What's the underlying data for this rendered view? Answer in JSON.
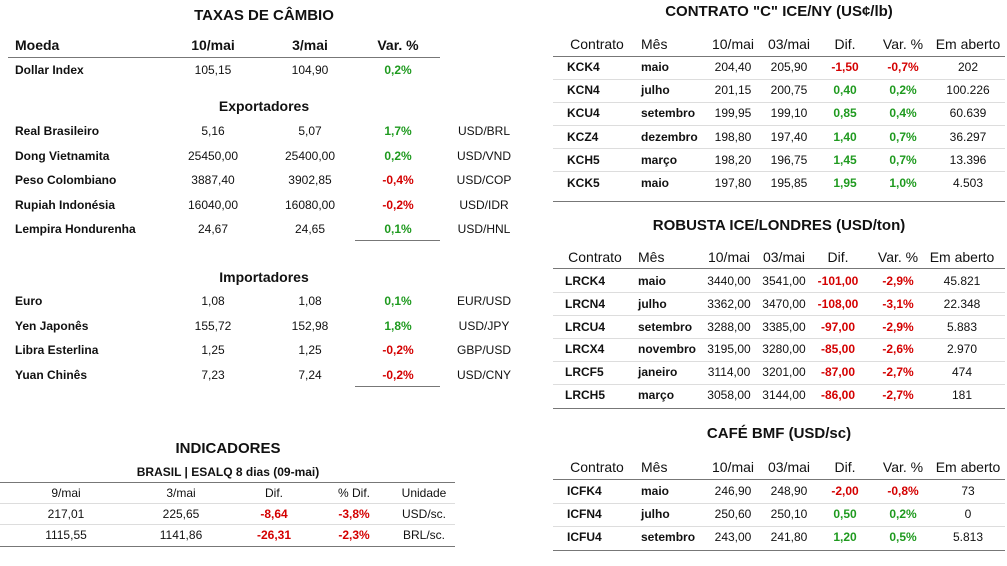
{
  "exchange": {
    "title": "TAXAS DE CÂMBIO",
    "header": [
      "Moeda",
      "10/mai",
      "3/mai",
      "Var. %"
    ],
    "dollar_index": [
      "Dollar Index",
      "105,15",
      "104,90",
      "0,2%"
    ],
    "exporters": {
      "title": "Exportadores",
      "rows": [
        [
          "Real Brasileiro",
          "5,16",
          "5,07",
          "1,7%",
          "USD/BRL"
        ],
        [
          "Dong Vietnamita",
          "25450,00",
          "25400,00",
          "0,2%",
          "USD/VND"
        ],
        [
          "Peso Colombiano",
          "3887,40",
          "3902,85",
          "-0,4%",
          "USD/COP"
        ],
        [
          "Rupiah Indonésia",
          "16040,00",
          "16080,00",
          "-0,2%",
          "USD/IDR"
        ],
        [
          "Lempira Hondurenha",
          "24,67",
          "24,65",
          "0,1%",
          "USD/HNL"
        ]
      ]
    },
    "importers": {
      "title": "Importadores",
      "rows": [
        [
          "Euro",
          "1,08",
          "1,08",
          "0,1%",
          "EUR/USD"
        ],
        [
          "Yen Japonês",
          "155,72",
          "152,98",
          "1,8%",
          "USD/JPY"
        ],
        [
          "Libra Esterlina",
          "1,25",
          "1,25",
          "-0,2%",
          "GBP/USD"
        ],
        [
          "Yuan Chinês",
          "7,23",
          "7,24",
          "-0,2%",
          "USD/CNY"
        ]
      ]
    }
  },
  "indicators": {
    "title": "INDICADORES",
    "subtitle": "BRASIL | ESALQ 8 dias (09-mai)",
    "header": [
      "9/mai",
      "3/mai",
      "Dif.",
      "% Dif.",
      "Unidade"
    ],
    "rows": [
      [
        "217,01",
        "225,65",
        "-8,64",
        "-3,8%",
        "USD/sc."
      ],
      [
        "1115,55",
        "1141,86",
        "-26,31",
        "-2,3%",
        "BRL/sc."
      ]
    ]
  },
  "ice_ny": {
    "title": "CONTRATO \"C\" ICE/NY (US¢/lb)",
    "header": [
      "Contrato",
      "Mês",
      "10/mai",
      "03/mai",
      "Dif.",
      "Var. %",
      "Em aberto"
    ],
    "rows": [
      [
        "KCK4",
        "maio",
        "204,40",
        "205,90",
        "-1,50",
        "-0,7%",
        "202"
      ],
      [
        "KCN4",
        "julho",
        "201,15",
        "200,75",
        "0,40",
        "0,2%",
        "100.226"
      ],
      [
        "KCU4",
        "setembro",
        "199,95",
        "199,10",
        "0,85",
        "0,4%",
        "60.639"
      ],
      [
        "KCZ4",
        "dezembro",
        "198,80",
        "197,40",
        "1,40",
        "0,7%",
        "36.297"
      ],
      [
        "KCH5",
        "março",
        "198,20",
        "196,75",
        "1,45",
        "0,7%",
        "13.396"
      ],
      [
        "KCK5",
        "maio",
        "197,80",
        "195,85",
        "1,95",
        "1,0%",
        "4.503"
      ]
    ]
  },
  "robusta": {
    "title": "ROBUSTA ICE/LONDRES (USD/ton)",
    "header": [
      "Contrato",
      "Mês",
      "10/mai",
      "03/mai",
      "Dif.",
      "Var. %",
      "Em aberto"
    ],
    "rows": [
      [
        "LRCK4",
        "maio",
        "3440,00",
        "3541,00",
        "-101,00",
        "-2,9%",
        "45.821"
      ],
      [
        "LRCN4",
        "julho",
        "3362,00",
        "3470,00",
        "-108,00",
        "-3,1%",
        "22.348"
      ],
      [
        "LRCU4",
        "setembro",
        "3288,00",
        "3385,00",
        "-97,00",
        "-2,9%",
        "5.883"
      ],
      [
        "LRCX4",
        "novembro",
        "3195,00",
        "3280,00",
        "-85,00",
        "-2,6%",
        "2.970"
      ],
      [
        "LRCF5",
        "janeiro",
        "3114,00",
        "3201,00",
        "-87,00",
        "-2,7%",
        "474"
      ],
      [
        "LRCH5",
        "março",
        "3058,00",
        "3144,00",
        "-86,00",
        "-2,7%",
        "181"
      ]
    ]
  },
  "bmf": {
    "title": "CAFÉ BMF (USD/sc)",
    "header": [
      "Contrato",
      "Mês",
      "10/mai",
      "03/mai",
      "Dif.",
      "Var. %",
      "Em aberto"
    ],
    "rows": [
      [
        "ICFK4",
        "maio",
        "246,90",
        "248,90",
        "-2,00",
        "-0,8%",
        "73"
      ],
      [
        "ICFN4",
        "julho",
        "250,60",
        "250,10",
        "0,50",
        "0,2%",
        "0"
      ],
      [
        "ICFU4",
        "setembro",
        "243,00",
        "241,80",
        "1,20",
        "0,5%",
        "5.813"
      ]
    ]
  }
}
